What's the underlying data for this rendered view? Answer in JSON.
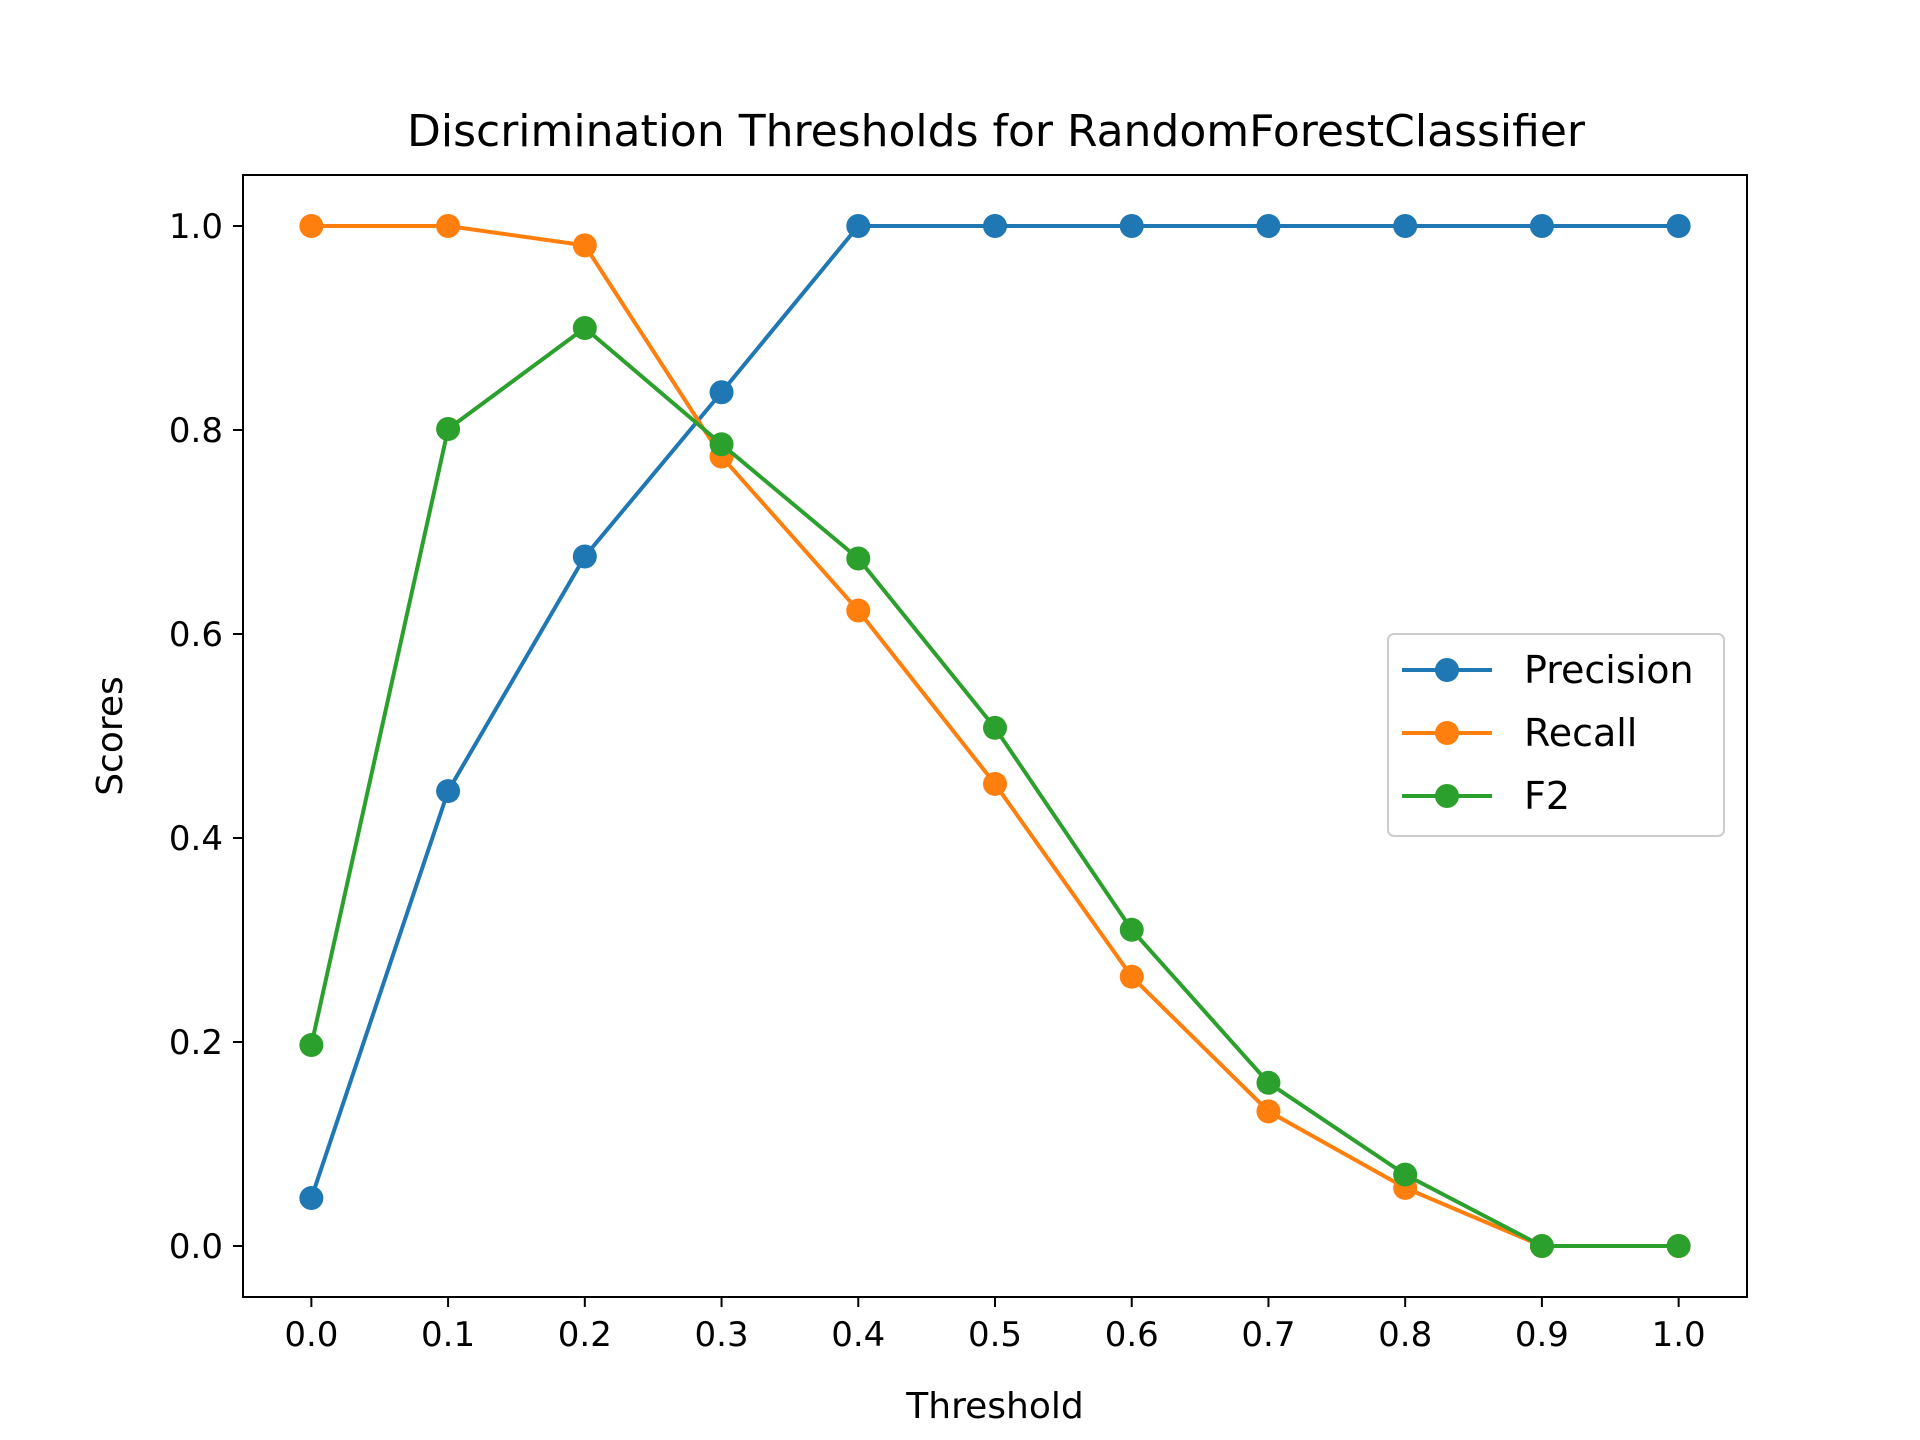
{
  "chart_data": {
    "type": "line",
    "title": "Discrimination Thresholds for RandomForestClassifier",
    "xlabel": "Threshold",
    "ylabel": "Scores",
    "x": [
      0.0,
      0.1,
      0.2,
      0.3,
      0.4,
      0.5,
      0.6,
      0.7,
      0.8,
      0.9,
      1.0
    ],
    "xticks": [
      "0.0",
      "0.1",
      "0.2",
      "0.3",
      "0.4",
      "0.5",
      "0.6",
      "0.7",
      "0.8",
      "0.9",
      "1.0"
    ],
    "yticks": [
      "0.0",
      "0.2",
      "0.4",
      "0.6",
      "0.8",
      "1.0"
    ],
    "xlim": [
      -0.05,
      1.05
    ],
    "ylim": [
      -0.05,
      1.05
    ],
    "grid": false,
    "legend_position": "center-right",
    "series": [
      {
        "name": "Precision",
        "color": "#1f77b4",
        "values": [
          0.047,
          0.446,
          0.676,
          0.837,
          1.0,
          1.0,
          1.0,
          1.0,
          1.0,
          1.0,
          1.0
        ]
      },
      {
        "name": "Recall",
        "color": "#ff7f0e",
        "values": [
          1.0,
          1.0,
          0.981,
          0.774,
          0.623,
          0.453,
          0.264,
          0.132,
          0.057,
          0.0,
          0.0
        ]
      },
      {
        "name": "F2",
        "color": "#2ca02c",
        "values": [
          0.197,
          0.801,
          0.9,
          0.786,
          0.674,
          0.508,
          0.31,
          0.16,
          0.07,
          0.0,
          0.0
        ]
      }
    ]
  }
}
